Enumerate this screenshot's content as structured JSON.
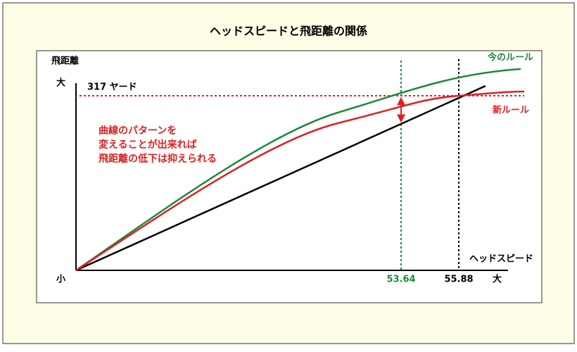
{
  "title": "ヘッドスピードと飛距離の関係",
  "y_axis": {
    "label": "飛距離",
    "max_label": "大",
    "min_label": "小"
  },
  "x_axis": {
    "label": "ヘッドスピード",
    "max_label": "大"
  },
  "reference": {
    "distance_label": "317 ヤード",
    "current_speed": "53.64",
    "new_speed": "55.88"
  },
  "legend": {
    "current": "今のルール",
    "new": "新ルール"
  },
  "annotation": [
    "曲線のパターンを",
    "変えることが出来れば",
    "飛距離の低下は抑えられる"
  ]
}
